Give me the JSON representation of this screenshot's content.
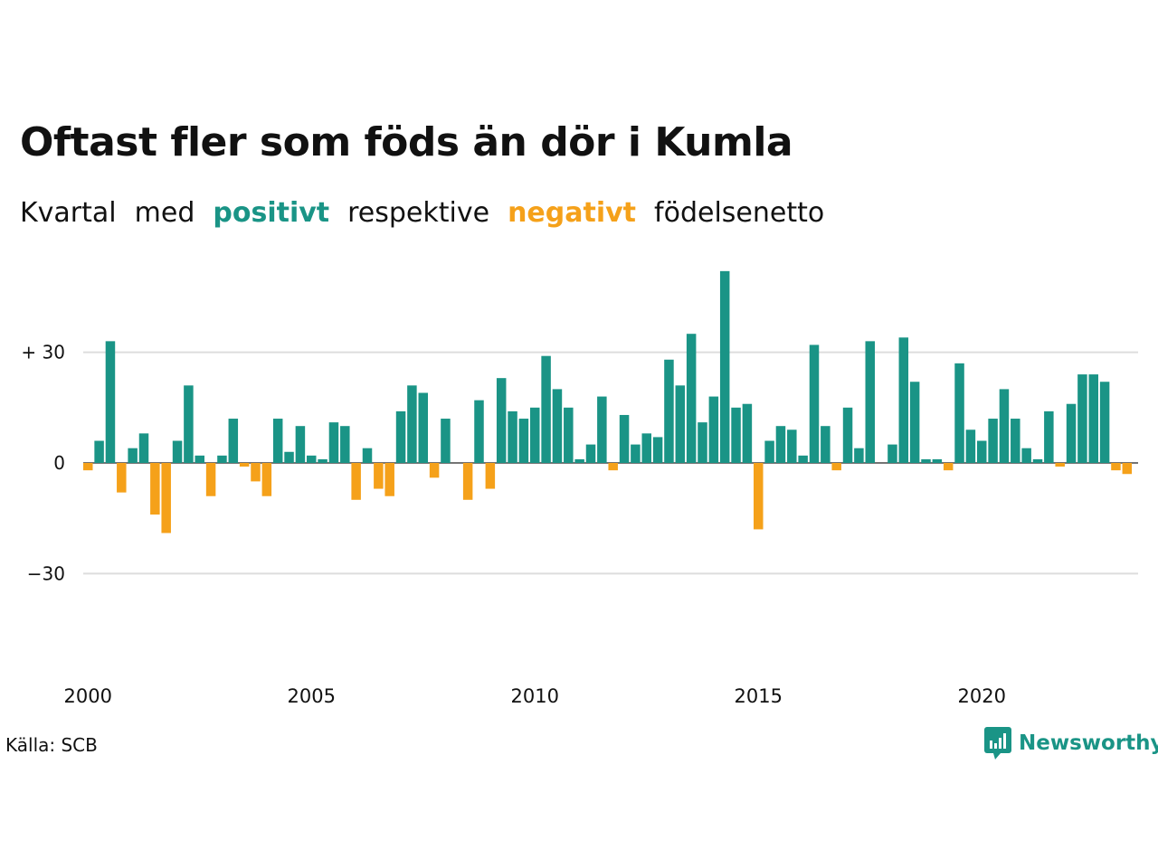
{
  "title": "Oftast fler som föds än dör i Kumla",
  "subtitle": {
    "w1": "Kvartal",
    "w2": "med",
    "pos": "positivt",
    "w3": "respektive",
    "neg": "negativt",
    "w4": "födelsenetto"
  },
  "source": "Källa: SCB",
  "brand": "Newsworthy",
  "colors": {
    "positive": "#1a9486",
    "negative": "#f5a11a",
    "grid": "#dddddd"
  },
  "chart_data": {
    "type": "bar",
    "x_start": "2000 Q1",
    "x_ticks": [
      {
        "year": 2000,
        "label": "2000"
      },
      {
        "year": 2005,
        "label": "2005"
      },
      {
        "year": 2010,
        "label": "2010"
      },
      {
        "year": 2015,
        "label": "2015"
      },
      {
        "year": 2020,
        "label": "2020"
      }
    ],
    "y_ticks": [
      {
        "value": 30,
        "label": "+ 30"
      },
      {
        "value": 0,
        "label": "0"
      },
      {
        "value": -30,
        "label": "−30"
      }
    ],
    "ylim": [
      -55,
      56
    ],
    "grid": true,
    "values": [
      -2,
      6,
      33,
      -8,
      4,
      8,
      -14,
      -19,
      6,
      21,
      2,
      -9,
      2,
      12,
      -1,
      -5,
      -9,
      12,
      3,
      10,
      2,
      1,
      11,
      10,
      -10,
      4,
      -7,
      -9,
      14,
      21,
      19,
      -4,
      12,
      0,
      -10,
      17,
      -7,
      23,
      14,
      12,
      15,
      29,
      20,
      15,
      1,
      5,
      18,
      -2,
      13,
      5,
      8,
      7,
      28,
      21,
      35,
      11,
      18,
      52,
      15,
      16,
      -18,
      6,
      10,
      9,
      2,
      32,
      10,
      -2,
      15,
      4,
      33,
      0,
      5,
      34,
      22,
      1,
      1,
      -2,
      27,
      9,
      6,
      12,
      20,
      12,
      4,
      1,
      14,
      -1,
      16,
      24,
      24,
      22,
      -2,
      -3
    ]
  }
}
